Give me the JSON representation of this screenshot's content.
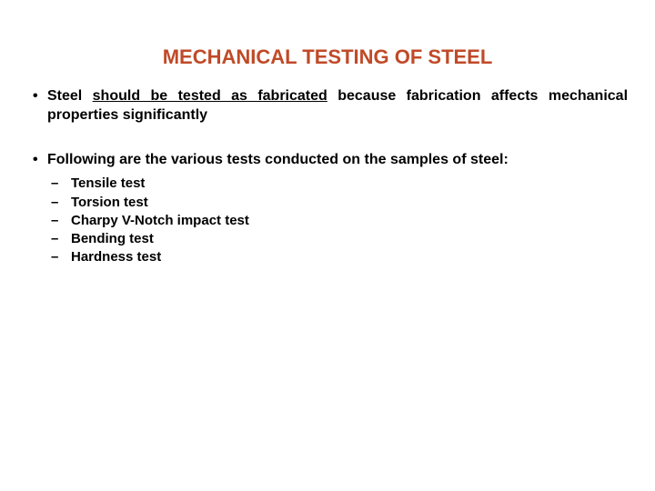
{
  "title": {
    "text": "MECHANICAL TESTING OF STEEL",
    "color": "#c04a28",
    "fontsize": 22,
    "fontweight": "bold"
  },
  "body_text_color": "#000000",
  "background_color": "#ffffff",
  "bullets": [
    {
      "pre": "Steel ",
      "underlined": "should be tested as fabricated",
      "post": " because fabrication affects mechanical properties significantly"
    },
    {
      "pre": "Following are the various tests conducted on the samples of steel:",
      "underlined": "",
      "post": ""
    }
  ],
  "sublist": [
    "Tensile test",
    "Torsion test",
    "Charpy V-Notch impact test",
    "Bending test",
    "Hardness test"
  ]
}
